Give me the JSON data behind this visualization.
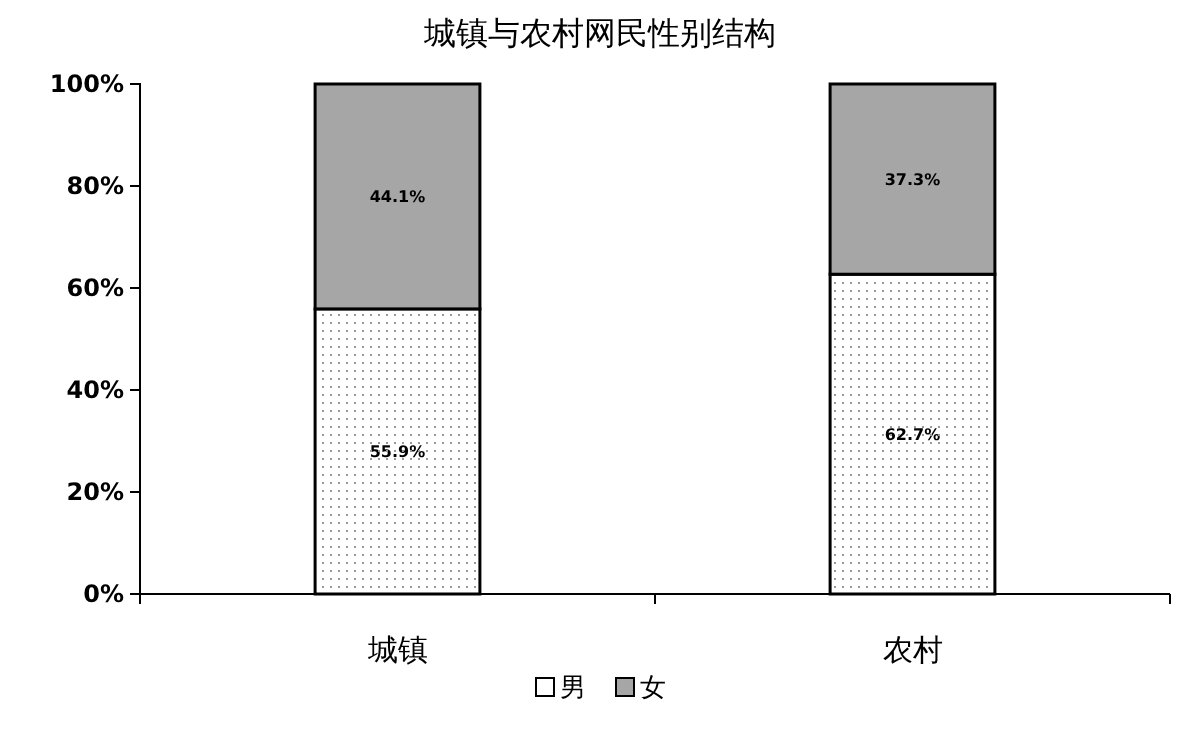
{
  "chart_data": {
    "type": "bar",
    "title": "城镇与农村网民性别结构",
    "categories": [
      "城镇",
      "农村"
    ],
    "stacked": true,
    "series": [
      {
        "name": "男",
        "color": "#ffffff",
        "values": [
          55.9,
          62.7
        ],
        "value_labels": [
          "55.9%",
          "62.7%"
        ]
      },
      {
        "name": "女",
        "color": "#a6a6a6",
        "values": [
          44.1,
          37.3
        ],
        "value_labels": [
          "44.1%",
          "37.3%"
        ]
      }
    ],
    "ylim": [
      0,
      100
    ],
    "yticks": [
      {
        "value": 0,
        "label": "0%"
      },
      {
        "value": 20,
        "label": "20%"
      },
      {
        "value": 40,
        "label": "40%"
      },
      {
        "value": 60,
        "label": "60%"
      },
      {
        "value": 80,
        "label": "80%"
      },
      {
        "value": 100,
        "label": "100%"
      }
    ],
    "grid": false,
    "legend": "bottom"
  }
}
